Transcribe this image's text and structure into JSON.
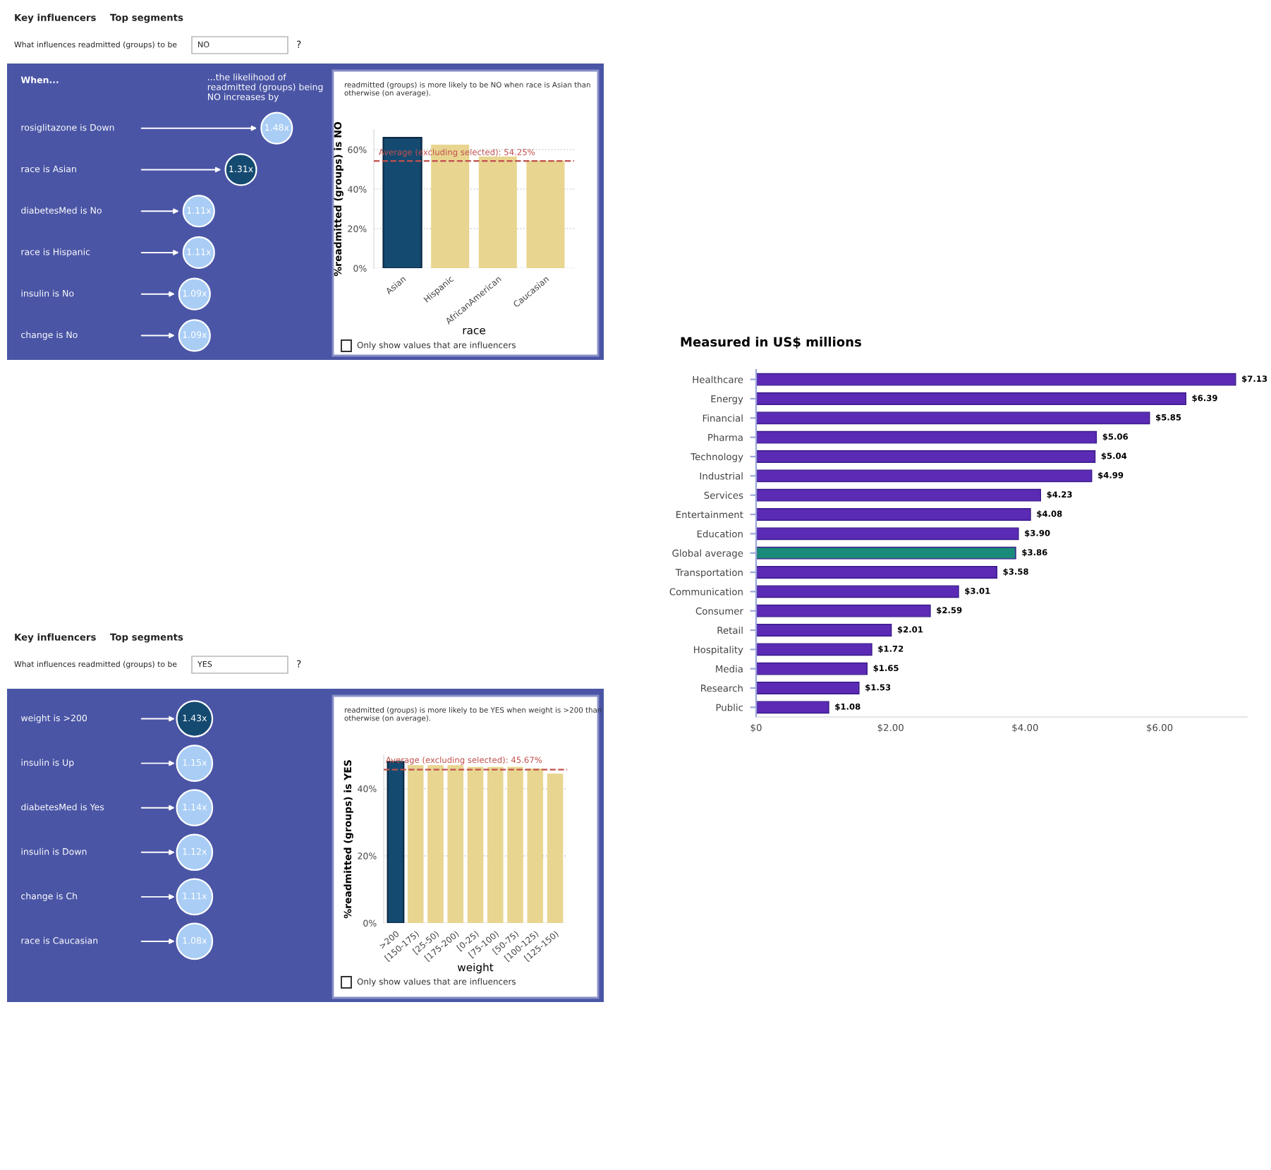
{
  "chart_data": [
    {
      "type": "other",
      "title": "When...",
      "subtitle": "...the likelihood of\nreadmitted (groups) being\nNO increases by",
      "annotations": [
        "Key influencers",
        "Top segments",
        "What influences readmitted (groups) to be",
        "NO",
        "?"
      ],
      "categories": [
        "rosiglitazone is Down",
        "race is Asian",
        "diabetesMed is No",
        "race is Hispanic",
        "insulin is No",
        "change is No"
      ],
      "values": [
        1.48,
        1.31,
        1.11,
        1.11,
        1.09,
        1.09
      ],
      "value_labels": [
        "1.48x",
        "1.31x",
        "1.11x",
        "1.11x",
        "1.09x",
        "1.09x"
      ],
      "colors": [
        "#a9cdf5",
        "#154a70",
        "#a9cdf5",
        "#a9cdf5",
        "#a9cdf5",
        "#a9cdf5"
      ]
    },
    {
      "type": "bar",
      "title": "readmitted (groups) is more likely to be NO when race is Asian than\notherwise (on average).",
      "ylabel": "%readmitted (groups) is NO",
      "xlabel": "race",
      "categories": [
        "Asian",
        "Hispanic",
        "AfricanAmerican",
        "Caucasian"
      ],
      "values": [
        66,
        62.5,
        56.5,
        54.5
      ],
      "colors": [
        "#154a70",
        "#e8d590",
        "#e8d590",
        "#e8d590"
      ],
      "ylim": [
        0,
        70
      ],
      "yticks": [
        {
          "value": 0,
          "label": "0%"
        },
        {
          "value": 20,
          "label": "20%"
        },
        {
          "value": 40,
          "label": "40%"
        },
        {
          "value": 60,
          "label": "60%"
        }
      ],
      "grid": "y",
      "ref_lines": [
        {
          "axis": "y",
          "value": 54.25,
          "label": "Average (excluding selected): 54.25%",
          "color": "#c0504d",
          "line_style": "dashed"
        }
      ],
      "annotations": [
        "Only show values that are influencers"
      ]
    },
    {
      "type": "other",
      "annotations": [
        "Key influencers",
        "Top segments",
        "What influences readmitted (groups) to be",
        "YES",
        "?"
      ],
      "categories": [
        "weight is >200",
        "insulin is Up",
        "diabetesMed is Yes",
        "insulin is Down",
        "change is Ch",
        "race is Caucasian"
      ],
      "values": [
        1.43,
        1.15,
        1.14,
        1.12,
        1.11,
        1.08
      ],
      "value_labels": [
        "1.43x",
        "1.15x",
        "1.14x",
        "1.12x",
        "1.11x",
        "1.08x"
      ],
      "colors": [
        "#154a70",
        "#a9cdf5",
        "#a9cdf5",
        "#a9cdf5",
        "#a9cdf5",
        "#a9cdf5"
      ]
    },
    {
      "type": "bar",
      "title": "readmitted (groups) is more likely to be YES when weight is >200 than\notherwise (on average).",
      "ylabel": "%readmitted (groups) is YES",
      "xlabel": "weight",
      "categories": [
        ">200",
        "[150-175)",
        "[25-50)",
        "[175-200)",
        "[0-25)",
        "[75-100)",
        "[50-75)",
        "[100-125)",
        "[125-150)"
      ],
      "values": [
        48,
        47,
        47,
        47,
        46.5,
        46.5,
        46.5,
        46,
        44.5
      ],
      "colors": [
        "#154a70",
        "#e8d590",
        "#e8d590",
        "#e8d590",
        "#e8d590",
        "#e8d590",
        "#e8d590",
        "#e8d590",
        "#e8d590"
      ],
      "ylim": [
        0,
        50
      ],
      "yticks": [
        {
          "value": 0,
          "label": "0%"
        },
        {
          "value": 20,
          "label": "20%"
        },
        {
          "value": 40,
          "label": "40%"
        }
      ],
      "grid": "y",
      "ref_lines": [
        {
          "axis": "y",
          "value": 45.67,
          "label": "Average (excluding selected): 45.67%",
          "color": "#c0504d",
          "line_style": "dashed"
        }
      ],
      "annotations": [
        "Only show values that are influencers"
      ]
    },
    {
      "type": "bar",
      "orientation": "horizontal",
      "title": "Measured in US$ millions",
      "categories": [
        "Healthcare",
        "Energy",
        "Financial",
        "Pharma",
        "Technology",
        "Industrial",
        "Services",
        "Entertainment",
        "Education",
        "Global average",
        "Transportation",
        "Communication",
        "Consumer",
        "Retail",
        "Hospitality",
        "Media",
        "Research",
        "Public"
      ],
      "values": [
        7.13,
        6.39,
        5.85,
        5.06,
        5.04,
        4.99,
        4.23,
        4.08,
        3.9,
        3.86,
        3.58,
        3.01,
        2.59,
        2.01,
        1.72,
        1.65,
        1.53,
        1.08
      ],
      "value_labels": [
        "$7.13",
        "$6.39",
        "$5.85",
        "$5.06",
        "$5.04",
        "$4.99",
        "$4.23",
        "$4.08",
        "$3.90",
        "$3.86",
        "$3.58",
        "$3.01",
        "$2.59",
        "$2.01",
        "$1.72",
        "$1.65",
        "$1.53",
        "$1.08"
      ],
      "colors": [
        "#5b2bb5",
        "#5b2bb5",
        "#5b2bb5",
        "#5b2bb5",
        "#5b2bb5",
        "#5b2bb5",
        "#5b2bb5",
        "#5b2bb5",
        "#5b2bb5",
        "#1a8a7a",
        "#5b2bb5",
        "#5b2bb5",
        "#5b2bb5",
        "#5b2bb5",
        "#5b2bb5",
        "#5b2bb5",
        "#5b2bb5",
        "#5b2bb5"
      ],
      "xlim": [
        0,
        7.3
      ],
      "xticks": [
        {
          "value": 0,
          "label": "$0"
        },
        {
          "value": 2,
          "label": "$2.00"
        },
        {
          "value": 4,
          "label": "$4.00"
        },
        {
          "value": 6,
          "label": "$6.00"
        }
      ]
    }
  ]
}
